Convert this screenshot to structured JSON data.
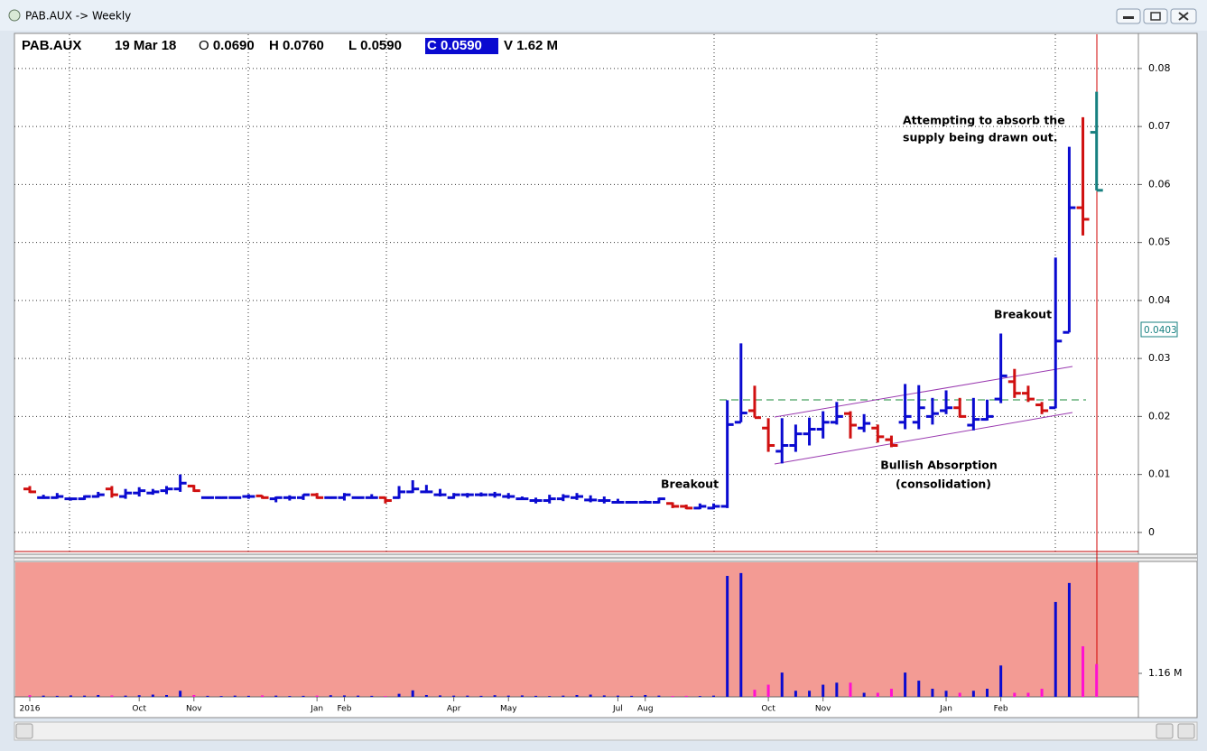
{
  "window_title": "PAB.AUX -> Weekly",
  "header": {
    "symbol": "PAB.AUX",
    "date": "19 Mar 18",
    "fields": [
      {
        "label": "O",
        "value": "0.0690"
      },
      {
        "label": "H",
        "value": "0.0760"
      },
      {
        "label": "L",
        "value": "0.0590"
      },
      {
        "label": "C",
        "value": "0.0590"
      },
      {
        "label": "V",
        "value": "1.62 M"
      }
    ]
  },
  "annotations": {
    "supply": [
      "Attempting to absorb the",
      "supply being drawn out."
    ],
    "breakout_first": "Breakout",
    "breakout_second": "Breakout",
    "absorption": [
      "Bullish Absorption",
      "(consolidation)"
    ]
  },
  "cursor_label": "0.0403",
  "chart_data": [
    {
      "type": "ohlc",
      "categories": [
        "2016",
        null,
        null,
        null,
        null,
        null,
        null,
        null,
        "Oct",
        null,
        null,
        null,
        "Nov",
        null,
        null,
        null,
        null,
        null,
        null,
        null,
        null,
        "Jan",
        null,
        "Feb",
        null,
        null,
        null,
        null,
        null,
        null,
        null,
        "Apr",
        null,
        null,
        null,
        "May",
        null,
        null,
        null,
        null,
        null,
        null,
        null,
        "Jul",
        null,
        "Aug",
        null,
        null,
        null,
        null,
        null,
        null,
        null,
        null,
        "Oct",
        null,
        null,
        null,
        "Nov",
        null,
        null,
        null,
        null,
        null,
        null,
        null,
        null,
        "Jan",
        null,
        null,
        null,
        "Feb",
        null,
        null,
        null,
        null,
        null,
        null,
        null
      ],
      "open": [
        0.0075,
        0.006,
        0.006,
        0.0058,
        0.0058,
        0.0062,
        0.0075,
        0.0062,
        0.0068,
        0.0068,
        0.0072,
        0.0075,
        0.008,
        0.006,
        0.006,
        0.006,
        0.0062,
        0.0063,
        0.0058,
        0.006,
        0.006,
        0.0065,
        0.006,
        0.006,
        0.006,
        0.006,
        0.006,
        0.006,
        0.007,
        0.007,
        0.0065,
        0.006,
        0.0065,
        0.0065,
        0.0065,
        0.0062,
        0.0058,
        0.0055,
        0.0055,
        0.0058,
        0.006,
        0.0056,
        0.0055,
        0.0052,
        0.0052,
        0.0052,
        0.0052,
        0.005,
        0.0045,
        0.0042,
        0.0042,
        0.0045,
        0.019,
        0.021,
        0.018,
        0.014,
        0.015,
        0.017,
        0.0178,
        0.019,
        0.0205,
        0.018,
        0.018,
        0.016,
        0.019,
        0.019,
        0.02,
        0.021,
        0.0215,
        0.0185,
        0.0195,
        0.023,
        0.026,
        0.024,
        0.022,
        0.0215,
        0.0345,
        0.056,
        0.069
      ],
      "high": [
        0.008,
        0.0065,
        0.0068,
        0.006,
        0.0064,
        0.007,
        0.008,
        0.0075,
        0.0078,
        0.0075,
        0.008,
        0.01,
        0.0082,
        0.0062,
        0.0061,
        0.0062,
        0.0066,
        0.0064,
        0.0062,
        0.0064,
        0.0066,
        0.0068,
        0.0062,
        0.0068,
        0.0062,
        0.0066,
        0.0061,
        0.008,
        0.009,
        0.0082,
        0.0075,
        0.0068,
        0.0068,
        0.0069,
        0.007,
        0.0068,
        0.0062,
        0.006,
        0.0065,
        0.0066,
        0.0068,
        0.0064,
        0.0062,
        0.0058,
        0.0054,
        0.0055,
        0.006,
        0.0052,
        0.0048,
        0.005,
        0.005,
        0.0228,
        0.0326,
        0.0253,
        0.0197,
        0.0197,
        0.0186,
        0.0198,
        0.0209,
        0.0225,
        0.0209,
        0.0204,
        0.0186,
        0.0167,
        0.0256,
        0.0254,
        0.0232,
        0.0245,
        0.0232,
        0.0232,
        0.0229,
        0.0343,
        0.0282,
        0.0253,
        0.0225,
        0.0474,
        0.0665,
        0.0716,
        0.076
      ],
      "low": [
        0.0068,
        0.0058,
        0.0058,
        0.0055,
        0.0056,
        0.006,
        0.006,
        0.0058,
        0.0062,
        0.0065,
        0.0066,
        0.007,
        0.007,
        0.0058,
        0.0058,
        0.0058,
        0.0058,
        0.0058,
        0.0052,
        0.0055,
        0.0056,
        0.0058,
        0.0058,
        0.0055,
        0.0058,
        0.0058,
        0.005,
        0.0058,
        0.0068,
        0.0068,
        0.0062,
        0.0058,
        0.006,
        0.0062,
        0.006,
        0.0058,
        0.0056,
        0.005,
        0.005,
        0.0054,
        0.0056,
        0.0052,
        0.005,
        0.005,
        0.005,
        0.005,
        0.005,
        0.0042,
        0.004,
        0.004,
        0.004,
        0.0042,
        0.019,
        0.0198,
        0.0139,
        0.0119,
        0.0139,
        0.015,
        0.0162,
        0.0186,
        0.0162,
        0.0173,
        0.0155,
        0.0147,
        0.0178,
        0.0178,
        0.0186,
        0.0204,
        0.0198,
        0.0176,
        0.0193,
        0.0223,
        0.0232,
        0.0225,
        0.0204,
        0.0214,
        0.0345,
        0.0512,
        0.059
      ],
      "close": [
        0.007,
        0.006,
        0.0062,
        0.0058,
        0.0062,
        0.0065,
        0.0065,
        0.0068,
        0.0072,
        0.007,
        0.0075,
        0.0085,
        0.0072,
        0.006,
        0.006,
        0.006,
        0.0062,
        0.006,
        0.006,
        0.006,
        0.0065,
        0.006,
        0.006,
        0.0065,
        0.006,
        0.006,
        0.0055,
        0.007,
        0.0075,
        0.007,
        0.0065,
        0.0065,
        0.0065,
        0.0065,
        0.0065,
        0.0062,
        0.0058,
        0.0055,
        0.0058,
        0.0062,
        0.0062,
        0.0056,
        0.0055,
        0.0052,
        0.0052,
        0.0052,
        0.0058,
        0.0045,
        0.0042,
        0.0045,
        0.0045,
        0.0186,
        0.0206,
        0.0198,
        0.015,
        0.015,
        0.017,
        0.0178,
        0.019,
        0.02,
        0.0185,
        0.0188,
        0.0165,
        0.015,
        0.02,
        0.0215,
        0.0205,
        0.0215,
        0.02,
        0.0195,
        0.02,
        0.027,
        0.024,
        0.023,
        0.021,
        0.033,
        0.056,
        0.054,
        0.059
      ],
      "colors": {
        "up": "#0a0ad0",
        "down": "#d01010",
        "current": "#178080"
      },
      "ylim": [
        -0.0036,
        0.0859
      ],
      "yticks": [
        0,
        0.01,
        0.02,
        0.03,
        0.04,
        0.05,
        0.06,
        0.07,
        0.08
      ],
      "grid": true
    },
    {
      "type": "bar",
      "values": [
        80000,
        60000,
        50000,
        70000,
        60000,
        90000,
        70000,
        60000,
        80000,
        110000,
        90000,
        300000,
        90000,
        50000,
        40000,
        60000,
        50000,
        70000,
        60000,
        40000,
        50000,
        60000,
        80000,
        70000,
        60000,
        50000,
        40000,
        150000,
        320000,
        90000,
        70000,
        60000,
        60000,
        50000,
        80000,
        60000,
        70000,
        50000,
        40000,
        60000,
        90000,
        110000,
        70000,
        60000,
        50000,
        90000,
        60000,
        40000,
        50000,
        40000,
        60000,
        5980000,
        6120000,
        350000,
        600000,
        1200000,
        300000,
        300000,
        600000,
        700000,
        700000,
        200000,
        200000,
        400000,
        1200000,
        800000,
        400000,
        300000,
        200000,
        300000,
        400000,
        1550000,
        200000,
        200000,
        400000,
        4690000,
        5630000,
        2500000,
        1620000
      ],
      "colors": {
        "up": "#0a0ad0",
        "down": "#ff10d0"
      },
      "background": "#f39b94",
      "ylim": [
        0,
        6650000
      ],
      "yticks": [
        {
          "value": 1160000,
          "label": "1.16 M"
        }
      ]
    }
  ]
}
